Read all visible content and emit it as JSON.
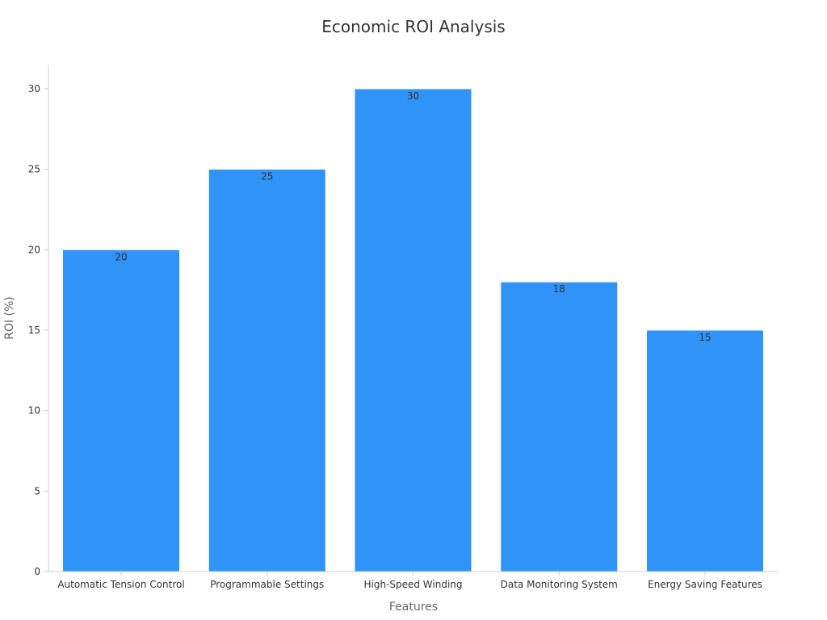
{
  "chart_data": {
    "type": "bar",
    "title": "Economic ROI Analysis",
    "xlabel": "Features",
    "ylabel": "ROI (%)",
    "categories": [
      "Automatic Tension Control",
      "Programmable Settings",
      "High-Speed Winding",
      "Data Monitoring System",
      "Energy Saving Features"
    ],
    "values": [
      20,
      25,
      30,
      18,
      15
    ],
    "ylim": [
      0,
      31.5
    ],
    "yticks": [
      0,
      5,
      10,
      15,
      20,
      25,
      30
    ],
    "grid": false,
    "legend": "none",
    "data_labels": true,
    "colors": {
      "bar": "#2f93f8",
      "bar_edge": "#ffffff",
      "axis": "#cccccc",
      "text": "#333333",
      "axis_title": "#666666"
    }
  }
}
